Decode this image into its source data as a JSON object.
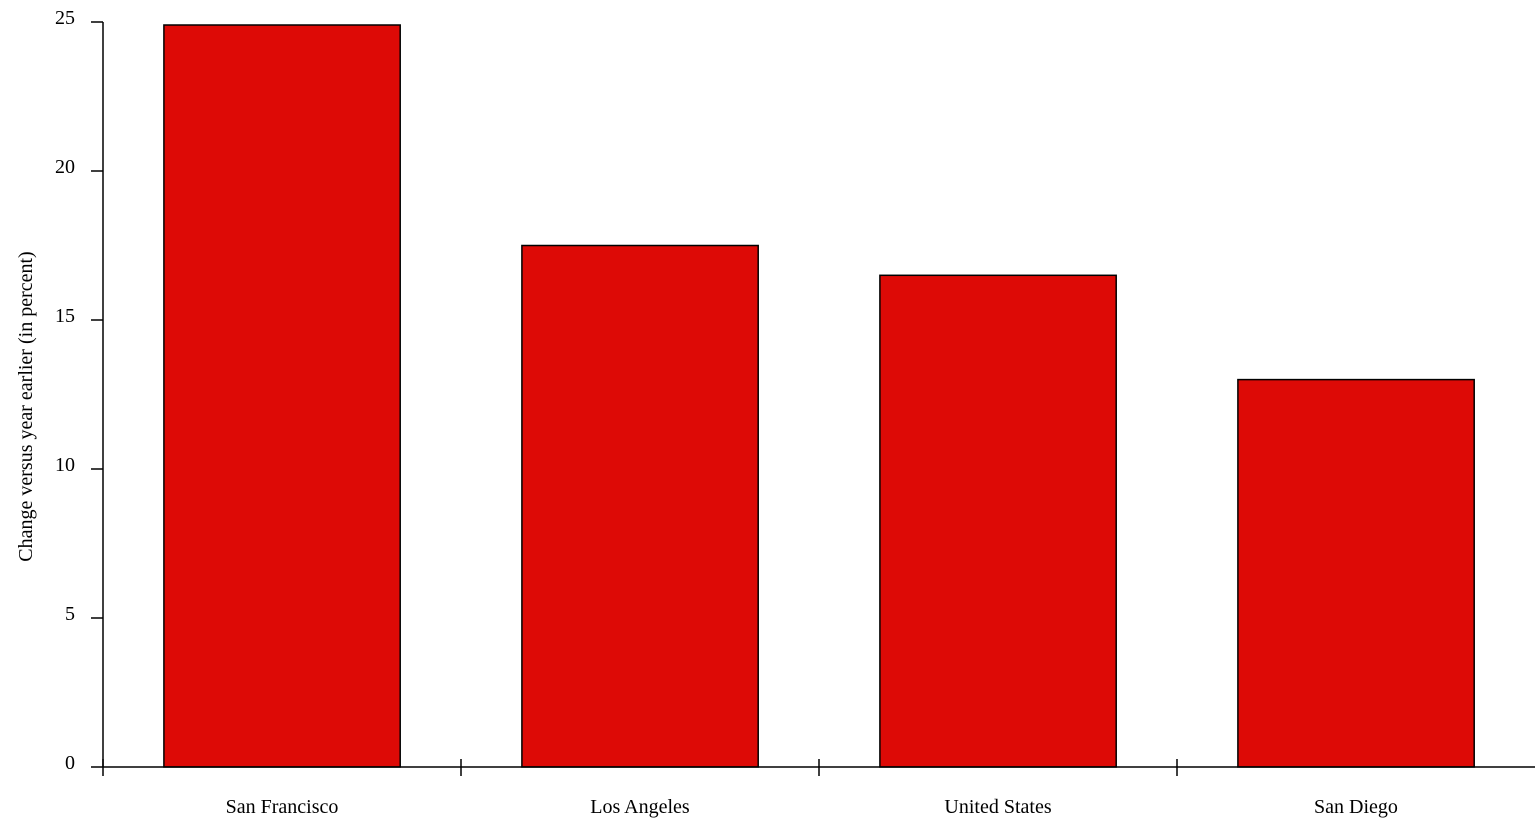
{
  "chart_data": {
    "type": "bar",
    "categories": [
      "San Francisco",
      "Los Angeles",
      "United States",
      "San Diego"
    ],
    "values": [
      24.9,
      17.5,
      16.5,
      13.0
    ],
    "title": "",
    "xlabel": "",
    "ylabel": "Change versus year earlier (in percent)",
    "ylim": [
      0,
      25
    ],
    "yticks": [
      0,
      5,
      10,
      15,
      20,
      25
    ],
    "grid": false,
    "legend": "none",
    "bar_color": "#dd0a06",
    "edge_color": "#000000"
  }
}
